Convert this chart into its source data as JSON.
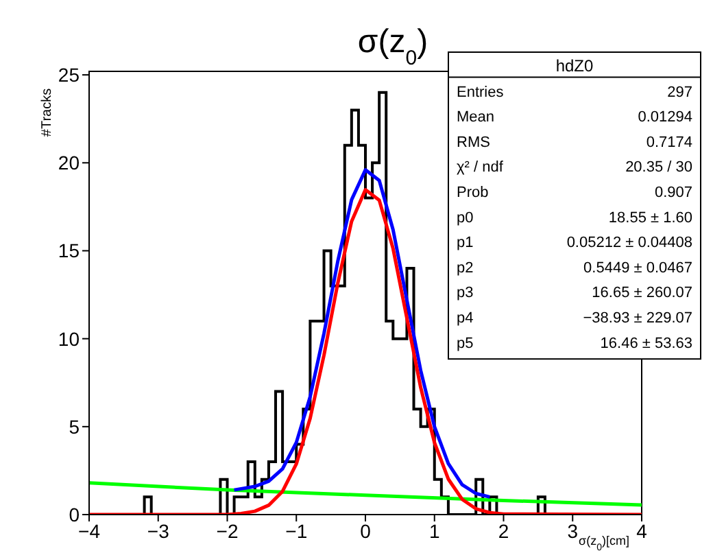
{
  "chart_data": {
    "type": "histogram",
    "title": "σ(z$_{0}$)",
    "xlabel": "σ(z$_{0}$)[cm]",
    "ylabel": "#Tracks",
    "bins": [
      -4,
      -3.9,
      -3.8,
      -3.7,
      -3.6,
      -3.5,
      -3.4,
      -3.3,
      -3.2,
      -3.1,
      -3,
      -2.9,
      -2.8,
      -2.7,
      -2.6,
      -2.5,
      -2.4,
      -2.3,
      -2.2,
      -2.1,
      -2,
      -1.9,
      -1.8,
      -1.7,
      -1.6,
      -1.5,
      -1.4,
      -1.3,
      -1.2,
      -1.1,
      -1,
      -0.9,
      -0.8,
      -0.7,
      -0.6,
      -0.5,
      -0.4,
      -0.3,
      -0.2,
      -0.1,
      0,
      0.1,
      0.2,
      0.3,
      0.4,
      0.5,
      0.6,
      0.7,
      0.8,
      0.9,
      1,
      1.1,
      1.2,
      1.3,
      1.4,
      1.5,
      1.6,
      1.7,
      1.8,
      1.9,
      2,
      2.1,
      2.2,
      2.3,
      2.4,
      2.5,
      2.6,
      2.7,
      2.8,
      2.9,
      3,
      3.1,
      3.2,
      3.3,
      3.4,
      3.5,
      3.6,
      3.7,
      3.8,
      3.9,
      4
    ],
    "values": [
      0,
      0,
      0,
      0,
      0,
      0,
      0,
      0,
      1,
      0,
      0,
      0,
      0,
      0,
      0,
      0,
      0,
      0,
      0,
      2,
      0,
      1,
      1,
      3,
      1,
      2,
      3,
      7,
      3,
      3,
      4,
      6,
      11,
      11,
      15,
      13,
      13,
      21,
      23,
      21,
      18,
      20,
      24,
      11,
      10,
      10,
      14,
      6,
      5,
      6,
      2,
      1,
      0,
      0,
      0,
      0,
      2,
      0,
      1,
      0,
      0,
      0,
      0,
      0,
      0,
      1,
      0,
      0,
      0,
      0,
      0,
      0,
      0,
      0,
      0,
      0,
      0,
      0,
      0,
      0
    ],
    "color": "#000000",
    "series": [
      {
        "type": "line",
        "color": "#00ff00",
        "x": [
          -4,
          -2,
          0,
          2,
          4
        ],
        "values": [
          1.8,
          1.4,
          1.1,
          0.8,
          0.55
        ]
      },
      {
        "type": "line",
        "color": "#0000ff",
        "x": [
          -1.9,
          -1.6,
          -1.4,
          -1.2,
          -1,
          -0.8,
          -0.6,
          -0.4,
          -0.2,
          0,
          0.2,
          0.4,
          0.6,
          0.8,
          1,
          1.2,
          1.4,
          1.6,
          1.8
        ],
        "values": [
          1.4,
          1.6,
          1.9,
          2.6,
          4.1,
          6.7,
          10.3,
          14.4,
          17.9,
          19.6,
          19,
          16.2,
          12.2,
          8.2,
          5,
          2.9,
          1.7,
          1.2,
          1
        ]
      },
      {
        "type": "line",
        "color": "#ff0000",
        "x": [
          -4,
          -2,
          -1.8,
          -1.6,
          -1.4,
          -1.2,
          -1,
          -0.8,
          -0.6,
          -0.4,
          -0.2,
          0,
          0.2,
          0.4,
          0.6,
          0.8,
          1,
          1.2,
          1.4,
          1.6,
          1.8,
          2,
          4
        ],
        "values": [
          0,
          0,
          0.06,
          0.19,
          0.53,
          1.32,
          2.88,
          5.47,
          9.06,
          13.15,
          16.67,
          18.47,
          17.88,
          15.13,
          11.18,
          7.23,
          4.09,
          2.02,
          0.87,
          0.33,
          0.11,
          0.03,
          0
        ]
      }
    ],
    "xlim": [
      -4,
      4
    ],
    "xticks": [
      {
        "value": -4,
        "label": "−4"
      },
      {
        "value": -3,
        "label": "−3"
      },
      {
        "value": -2,
        "label": "−2"
      },
      {
        "value": -1,
        "label": "−1"
      },
      0,
      1,
      2,
      3,
      4
    ],
    "ylim": [
      0,
      25.2
    ],
    "yticks": [
      0,
      5,
      10,
      15,
      20,
      25
    ],
    "grid": false,
    "legend": false,
    "marker": "none",
    "line_style": "solid",
    "annotations": [
      "hdZ0",
      "Entries",
      "297",
      "Mean",
      "0.01294",
      "RMS",
      "0.7174",
      "χ² / ndf",
      "20.35 / 30",
      "Prob",
      "0.907",
      "p0",
      "18.55 ± 1.60",
      "p1",
      "0.05212 ± 0.04408",
      "p2",
      "0.5449 ± 0.0467",
      "p3",
      "16.65 ± 260.07",
      "p4",
      "−38.93 ± 229.07",
      "p5",
      "16.46 ± 53.63"
    ]
  }
}
